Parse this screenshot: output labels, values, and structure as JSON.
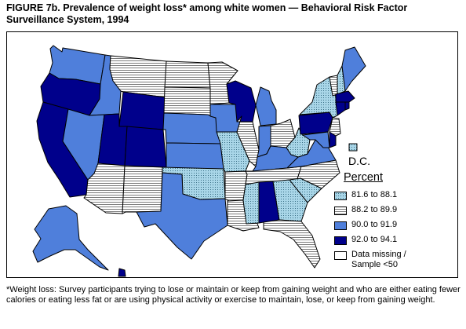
{
  "figure": {
    "title": "FIGURE 7b. Prevalence of weight loss* among white women — Behavioral Risk Factor Surveillance System, 1994"
  },
  "map": {
    "dc_label": "D.C."
  },
  "legend": {
    "title": "Percent",
    "items": [
      {
        "label": "81.6 to 88.1",
        "pattern": "dots",
        "color": "#a9d6e8"
      },
      {
        "label": "88.2 to 89.9",
        "pattern": "hlines",
        "color": "#ffffff"
      },
      {
        "label": "90.0 to 91.9",
        "pattern": "solid",
        "color": "#4f7fdb"
      },
      {
        "label": "92.0 to 94.1",
        "pattern": "solid",
        "color": "#00008b"
      },
      {
        "label": "Data missing / Sample <50",
        "pattern": "solid",
        "color": "#ffffff"
      }
    ]
  },
  "footnote": "*Weight loss: Survey participants trying to lose or maintain or keep from gaining weight and who are either eating fewer calories or eating less fat or are using physical activity or exercise to maintain, lose, or keep from gaining weight.",
  "states": {
    "WA": "3",
    "OR": "4",
    "CA": "4",
    "ID": "3",
    "NV": "3",
    "AZ": "2",
    "MT": "2",
    "WY": "4",
    "UT": "4",
    "CO": "4",
    "NM": "2",
    "ND": "2",
    "SD": "2",
    "NE": "3",
    "KS": "3",
    "OK": "1",
    "TX": "3",
    "MN": "2",
    "IA": "3",
    "MO": "1",
    "AR": "2",
    "LA": "2",
    "WI": "4",
    "IL": "2",
    "MS": "1",
    "MI": "3",
    "IN": "3",
    "KY": "3",
    "TN": "2",
    "AL": "4",
    "OH": "2",
    "GA": "1",
    "FL": "2",
    "WV": "1",
    "VA": "3",
    "NC": "2",
    "SC": "1",
    "PA": "4",
    "NY": "1",
    "MD": "3",
    "DE": "4",
    "NJ": "2",
    "CT": "4",
    "RI": "4",
    "MA": "4",
    "VT": "2",
    "NH": "1",
    "ME": "3",
    "AK": "3",
    "HI": "4",
    "DC": "1"
  }
}
